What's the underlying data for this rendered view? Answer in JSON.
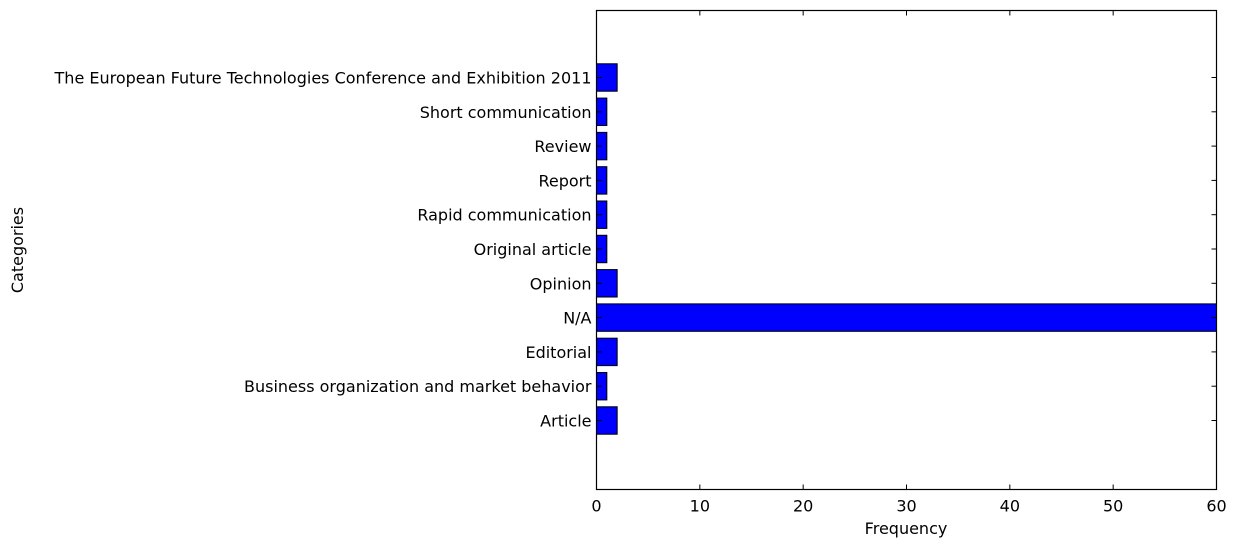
{
  "chart_data": {
    "type": "bar",
    "orientation": "horizontal",
    "title": "",
    "xlabel": "Frequency",
    "ylabel": "Categories",
    "categories": [
      "Article",
      "Business organization and market behavior",
      "Editorial",
      "N/A",
      "Opinion",
      "Original article",
      "Rapid communication",
      "Report",
      "Review",
      "Short communication",
      "The European Future Technologies Conference and Exhibition 2011"
    ],
    "values": [
      2,
      1,
      2,
      60,
      2,
      1,
      1,
      1,
      1,
      1,
      2
    ],
    "xlim": [
      0,
      60
    ],
    "xticks": [
      "0",
      "10",
      "20",
      "30",
      "40",
      "50",
      "60"
    ],
    "grid": false,
    "legend": "none",
    "bar_color": "#0000ff",
    "edge_color": "#000000"
  }
}
